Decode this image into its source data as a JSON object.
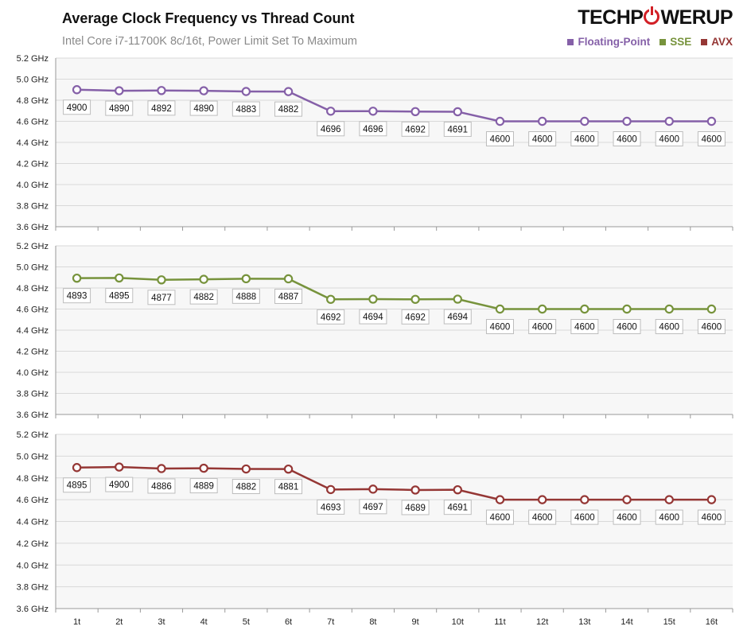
{
  "header": {
    "title": "Average Clock Frequency vs Thread Count",
    "subtitle": "Intel Core i7-11700K 8c/16t, Power Limit Set To Maximum",
    "logo_left": "TECHP",
    "logo_right": "WERUP"
  },
  "legend": [
    {
      "label": "Floating-Point",
      "color": "#8560a8"
    },
    {
      "label": "SSE",
      "color": "#77933c"
    },
    {
      "label": "AVX",
      "color": "#953735"
    }
  ],
  "chart_data": {
    "type": "line",
    "categories": [
      "1t",
      "2t",
      "3t",
      "4t",
      "5t",
      "6t",
      "7t",
      "8t",
      "9t",
      "10t",
      "11t",
      "12t",
      "13t",
      "14t",
      "15t",
      "16t"
    ],
    "y_tick_labels": [
      "3.6 GHz",
      "3.8 GHz",
      "4.0 GHz",
      "4.2 GHz",
      "4.4 GHz",
      "4.6 GHz",
      "4.8 GHz",
      "5.0 GHz",
      "5.2 GHz"
    ],
    "ylim": [
      3600,
      5200
    ],
    "grid": true,
    "legend_position": "top-right",
    "series": [
      {
        "name": "Floating-Point",
        "color": "#8560a8",
        "values": [
          4900,
          4890,
          4892,
          4890,
          4883,
          4882,
          4696,
          4696,
          4692,
          4691,
          4600,
          4600,
          4600,
          4600,
          4600,
          4600
        ]
      },
      {
        "name": "SSE",
        "color": "#77933c",
        "values": [
          4893,
          4895,
          4877,
          4882,
          4888,
          4887,
          4692,
          4694,
          4692,
          4694,
          4600,
          4600,
          4600,
          4600,
          4600,
          4600
        ]
      },
      {
        "name": "AVX",
        "color": "#953735",
        "values": [
          4895,
          4900,
          4886,
          4889,
          4882,
          4881,
          4693,
          4697,
          4689,
          4691,
          4600,
          4600,
          4600,
          4600,
          4600,
          4600
        ]
      }
    ]
  }
}
